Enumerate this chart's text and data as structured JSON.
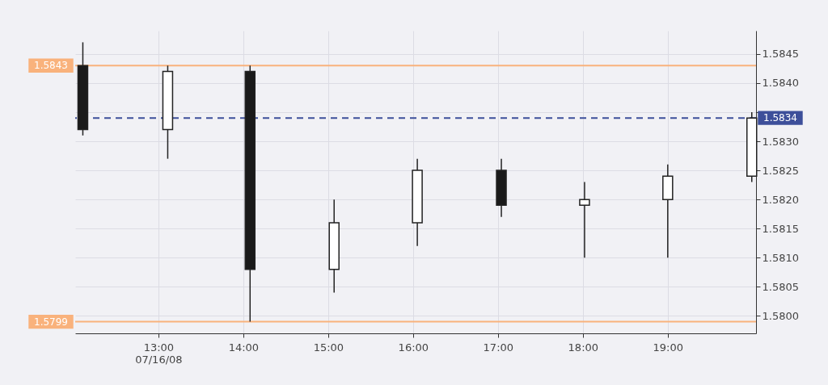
{
  "chart_data": {
    "type": "candlestick",
    "x": [
      12.11,
      13.11,
      14.08,
      15.07,
      16.05,
      17.04,
      18.02,
      19.0,
      19.99
    ],
    "ohlc": [
      [
        1.5843,
        1.5847,
        1.5831,
        1.5832
      ],
      [
        1.5832,
        1.5843,
        1.5827,
        1.5842
      ],
      [
        1.5842,
        1.5843,
        1.5799,
        1.5808
      ],
      [
        1.5808,
        1.582,
        1.5804,
        1.5816
      ],
      [
        1.5816,
        1.5827,
        1.5812,
        1.5825
      ],
      [
        1.5825,
        1.5827,
        1.5817,
        1.5819
      ],
      [
        1.5819,
        1.5823,
        1.581,
        1.582
      ],
      [
        1.582,
        1.5826,
        1.581,
        1.5824
      ],
      [
        1.5824,
        1.5835,
        1.5823,
        1.5834
      ]
    ],
    "colors": [
      "#1a1a1a",
      "#ffffff",
      "#1a1a1a",
      "#ffffff",
      "#ffffff",
      "#1a1a1a",
      "#ffffff",
      "#ffffff",
      "#ffffff"
    ],
    "xlim": [
      12.02,
      20.04
    ],
    "xticks": [
      {
        "value": 13,
        "label": "13:00\n07/16/08"
      },
      {
        "value": 14,
        "label": "14:00"
      },
      {
        "value": 15,
        "label": "15:00"
      },
      {
        "value": 16,
        "label": "16:00"
      },
      {
        "value": 17,
        "label": "17:00"
      },
      {
        "value": 18,
        "label": "18:00"
      },
      {
        "value": 19,
        "label": "19:00"
      }
    ],
    "ylim": [
      1.5797,
      1.5849
    ],
    "yticks": [
      {
        "value": 1.58,
        "label": "1.5800"
      },
      1.5805,
      {
        "value": 1.581,
        "label": "1.5810"
      },
      1.5815,
      {
        "value": 1.582,
        "label": "1.5820"
      },
      1.5825,
      {
        "value": 1.583,
        "label": "1.5830"
      },
      {
        "value": 1.5835,
        "label": null
      },
      {
        "value": 1.584,
        "label": "1.5840"
      },
      1.5845
    ],
    "ref_lines": [
      {
        "axis": "y",
        "value": 1.5843,
        "label": "1.5843",
        "color": "#f9b27c"
      },
      {
        "axis": "y",
        "value": 1.5799,
        "label": "1.5799",
        "color": "#f9b27c"
      },
      {
        "axis": "y",
        "value": 1.5834,
        "label": "1.5834",
        "color": "#3d4f9a",
        "line_style": "dashed"
      }
    ],
    "grid": true
  }
}
